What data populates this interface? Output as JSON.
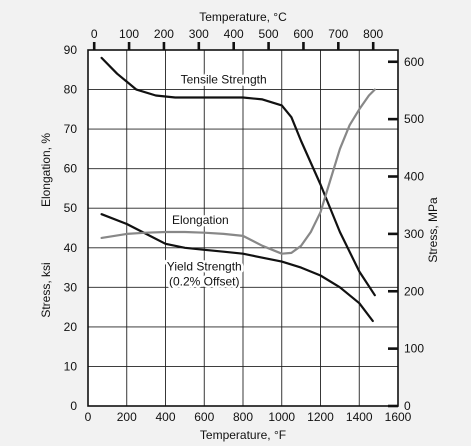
{
  "chart_data": {
    "type": "line",
    "axes": {
      "bottom": {
        "label": "Temperature, °F",
        "range": [
          0,
          1600
        ],
        "ticks": [
          0,
          200,
          400,
          600,
          800,
          1000,
          1200,
          1400,
          1600
        ]
      },
      "top": {
        "label": "Temperature, °C",
        "range": [
          -17.78,
          871.11
        ],
        "ticks": [
          0,
          100,
          200,
          300,
          400,
          500,
          600,
          700,
          800
        ]
      },
      "left": {
        "label": "Stress, ksi",
        "label_secondary": "Elongation, %",
        "range": [
          0,
          90
        ],
        "ticks": [
          0,
          10,
          20,
          30,
          40,
          50,
          60,
          70,
          80,
          90
        ]
      },
      "right": {
        "label": "Stress, MPa",
        "range": [
          0,
          620.5
        ],
        "ticks": [
          0,
          100,
          200,
          300,
          400,
          500,
          600
        ]
      }
    },
    "grid": true,
    "series": [
      {
        "name": "Tensile Strength",
        "color": "#111111",
        "x": [
          70,
          150,
          250,
          350,
          450,
          600,
          700,
          800,
          900,
          1000,
          1050,
          1100,
          1200,
          1300,
          1400,
          1480
        ],
        "y": [
          88,
          84,
          80,
          78.5,
          78,
          78,
          78,
          78,
          77.5,
          76,
          73,
          67,
          56,
          44,
          34,
          28
        ]
      },
      {
        "name": "Yield Strength (0.2% Offset)",
        "color": "#111111",
        "x": [
          70,
          200,
          300,
          400,
          500,
          600,
          700,
          800,
          900,
          1000,
          1100,
          1200,
          1300,
          1400,
          1470
        ],
        "y": [
          48.5,
          46,
          43.5,
          41,
          40,
          39.5,
          39,
          38.5,
          37.5,
          36.5,
          35,
          33,
          30,
          26,
          21.5
        ]
      },
      {
        "name": "Elongation",
        "color": "#888888",
        "x": [
          70,
          200,
          300,
          400,
          500,
          600,
          700,
          800,
          900,
          1000,
          1050,
          1100,
          1150,
          1200,
          1250,
          1300,
          1350,
          1400,
          1450,
          1480
        ],
        "y": [
          42.5,
          43.5,
          43.8,
          44,
          44,
          43.8,
          43.5,
          43,
          40.5,
          38.5,
          38.7,
          40.5,
          44,
          49,
          57,
          65,
          71,
          75,
          78.5,
          80
        ]
      }
    ],
    "annotations": [
      {
        "text": "Tensile Strength",
        "x": 700,
        "y": 81.5
      },
      {
        "text": "Elongation",
        "x": 580,
        "y": 46
      },
      {
        "text": "Yield Strength",
        "x": 600,
        "y": 34.3
      },
      {
        "text": "(0.2% Offset)",
        "x": 600,
        "y": 30.5
      }
    ]
  }
}
